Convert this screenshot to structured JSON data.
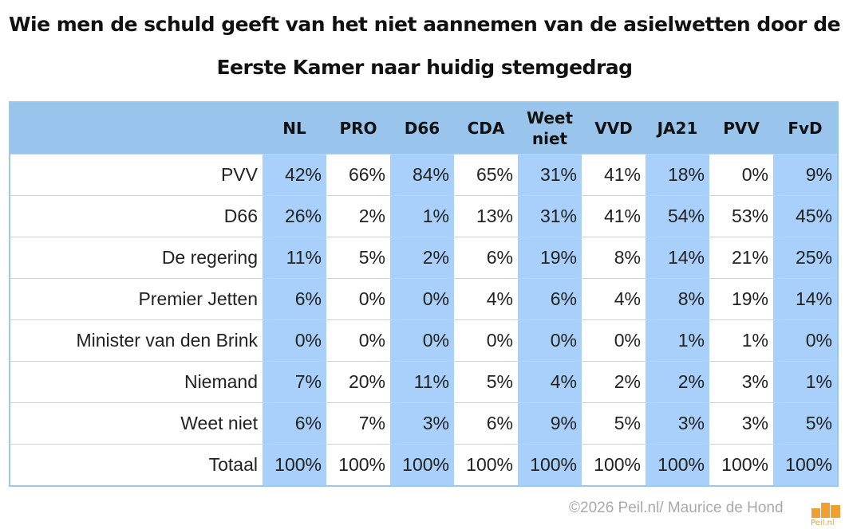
{
  "title_line1": "Wie men de schuld geeft van het niet aannemen van de asielwetten door de",
  "title_line2": "Eerste Kamer naar huidig stemgedrag",
  "footer": "©2026 Peil.nl/ Maurice de Hond",
  "logo_text": "Peil.nl",
  "colors": {
    "header": "#99c4ec",
    "alt_column": "#a8d0fb",
    "logo": "#f0a030"
  },
  "chart_data": {
    "type": "table",
    "columns": [
      "NL",
      "PRO",
      "D66",
      "CDA",
      "Weet niet",
      "VVD",
      "JA21",
      "PVV",
      "FvD"
    ],
    "rows": [
      {
        "label": "PVV",
        "values": [
          "42%",
          "66%",
          "84%",
          "65%",
          "31%",
          "41%",
          "18%",
          "0%",
          "9%"
        ]
      },
      {
        "label": "D66",
        "values": [
          "26%",
          "2%",
          "1%",
          "13%",
          "31%",
          "41%",
          "54%",
          "53%",
          "45%"
        ]
      },
      {
        "label": "De regering",
        "values": [
          "11%",
          "5%",
          "2%",
          "6%",
          "19%",
          "8%",
          "14%",
          "21%",
          "25%"
        ]
      },
      {
        "label": "Premier Jetten",
        "values": [
          "6%",
          "0%",
          "0%",
          "4%",
          "6%",
          "4%",
          "8%",
          "19%",
          "14%"
        ]
      },
      {
        "label": "Minister van den Brink",
        "values": [
          "0%",
          "0%",
          "0%",
          "0%",
          "0%",
          "0%",
          "1%",
          "1%",
          "0%"
        ]
      },
      {
        "label": "Niemand",
        "values": [
          "7%",
          "20%",
          "11%",
          "5%",
          "4%",
          "2%",
          "2%",
          "3%",
          "1%"
        ]
      },
      {
        "label": "Weet niet",
        "values": [
          "6%",
          "7%",
          "3%",
          "6%",
          "9%",
          "5%",
          "3%",
          "3%",
          "5%"
        ]
      },
      {
        "label": "Totaal",
        "values": [
          "100%",
          "100%",
          "100%",
          "100%",
          "100%",
          "100%",
          "100%",
          "100%",
          "100%"
        ]
      }
    ]
  }
}
